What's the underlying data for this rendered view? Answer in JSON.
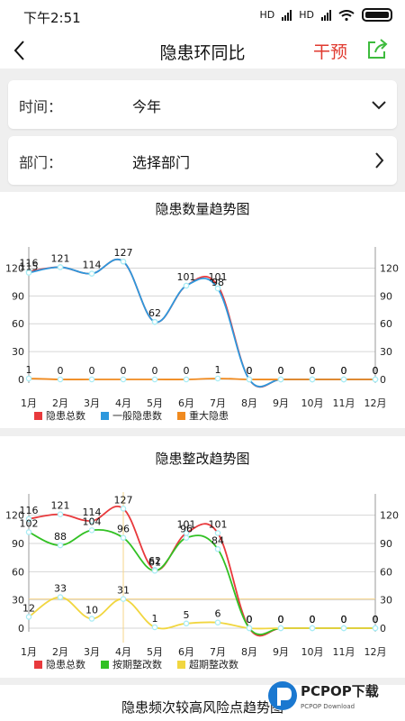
{
  "status": {
    "time": "下午2:51",
    "net1": "HD",
    "net2": "HD"
  },
  "header": {
    "title": "隐患环同比",
    "intervene_label": "干预"
  },
  "filters": [
    {
      "label": "时间：",
      "value": "今年",
      "arrow": "chevron-down-icon"
    },
    {
      "label": "部门：",
      "value": "选择部门",
      "arrow": "chevron-right-icon"
    }
  ],
  "colors": {
    "red": "#e8393c",
    "blue": "#2d98dd",
    "orange": "#f08a1f",
    "green": "#32c124",
    "yellow": "#f1d640",
    "grid": "#d6d6d6",
    "point": "#a8ecf4"
  },
  "charts": [
    {
      "title": "隐患数量趋势图"
    },
    {
      "title": "隐患整改趋势图"
    }
  ],
  "chart_data": [
    {
      "type": "line",
      "title": "隐患数量趋势图",
      "categories": [
        "1月",
        "2月",
        "3月",
        "4月",
        "5月",
        "6月",
        "7月",
        "8月",
        "9月",
        "10月",
        "11月",
        "12月"
      ],
      "ylim": [
        0,
        135
      ],
      "yticks": [
        0,
        30,
        60,
        90,
        120
      ],
      "series": [
        {
          "name": "隐患总数",
          "color": "#e8393c",
          "values": [
            116,
            121,
            114,
            127,
            62,
            101,
            101,
            0,
            0,
            0,
            0,
            0
          ],
          "labels": true
        },
        {
          "name": "一般隐患数",
          "color": "#2d98dd",
          "values": [
            115,
            121,
            114,
            127,
            62,
            101,
            98,
            0,
            0,
            0,
            0,
            0
          ],
          "labels": false
        },
        {
          "name": "重大隐患",
          "color": "#f08a1f",
          "values": [
            1,
            0,
            0,
            0,
            0,
            0,
            1,
            0,
            0,
            0,
            0,
            0
          ],
          "labels": true
        }
      ],
      "extra_labels": [
        {
          "index": 0,
          "text": "115"
        },
        {
          "index": 6,
          "text": "98"
        }
      ],
      "legend": "bottom-left"
    },
    {
      "type": "line",
      "title": "隐患整改趋势图",
      "categories": [
        "1月",
        "2月",
        "3月",
        "4月",
        "5月",
        "6月",
        "7月",
        "8月",
        "9月",
        "10月",
        "11月",
        "12月"
      ],
      "ylim": [
        0,
        135
      ],
      "yticks": [
        0,
        30,
        60,
        90,
        120
      ],
      "series": [
        {
          "name": "隐患总数",
          "color": "#e8393c",
          "values": [
            116,
            121,
            114,
            127,
            62,
            101,
            101,
            0,
            0,
            0,
            0,
            0
          ],
          "labels": true
        },
        {
          "name": "按期整改数",
          "color": "#32c124",
          "values": [
            102,
            88,
            104,
            96,
            61,
            96,
            84,
            0,
            0,
            0,
            0,
            0
          ],
          "labels": true
        },
        {
          "name": "超期整改数",
          "color": "#f1d640",
          "values": [
            12,
            33,
            10,
            31,
            1,
            5,
            6,
            0,
            0,
            0,
            0,
            0
          ],
          "labels": true
        }
      ],
      "highlight": {
        "index": 3,
        "value": 31
      },
      "legend": "bottom-left"
    }
  ],
  "next_chart_title": "隐患频次较高风险点趋势图",
  "watermark": {
    "brand": "PCPOP下载",
    "sub": "PCPOP Download"
  }
}
